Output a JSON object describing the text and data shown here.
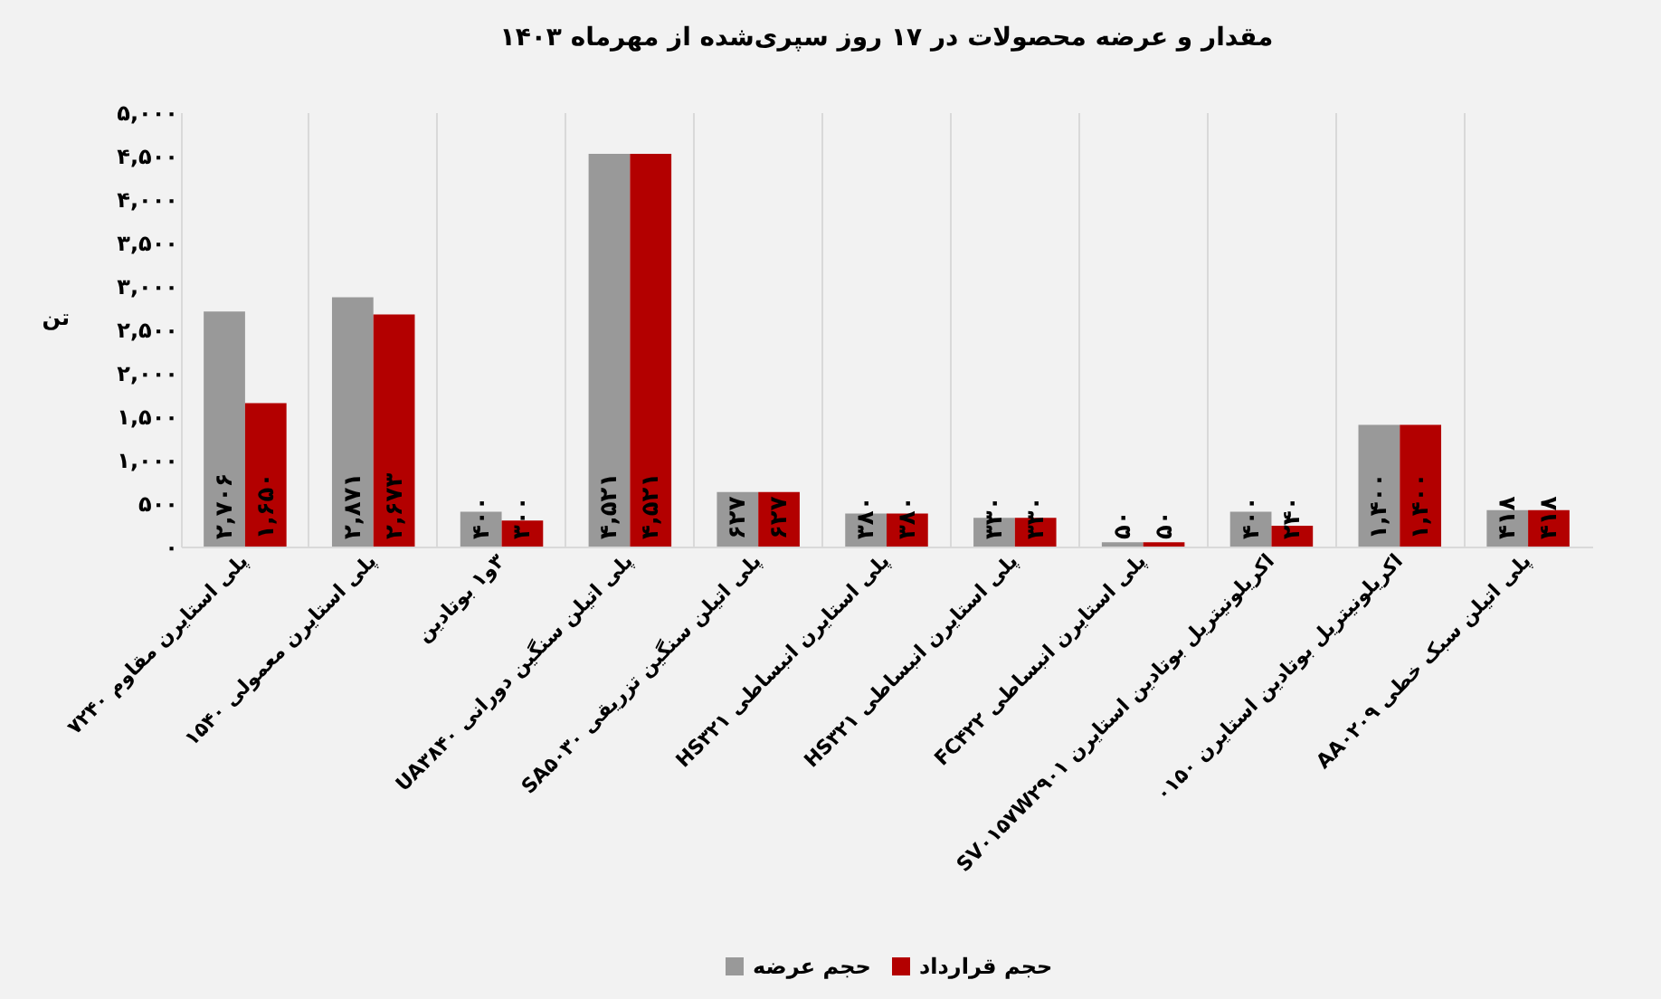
{
  "chart_data": {
    "type": "bar",
    "title": "مقدار و عرضه محصولات در ۱۷ روز سپری‌شده از مهرماه ۱۴۰۳",
    "ylabel": "تن",
    "categories": [
      "پلی استایرن مقاوم ۷۲۴۰",
      "پلی استایرن معمولی ۱۵۴۰",
      "۳و۱ بوتادین",
      "پلی اتیلن سنگین دورانی UA۳۸۴۰",
      "پلی اتیلن سنگین تزریقی SA۵۰۳۰",
      "پلی استایرن انبساطی HS۳۲۱",
      "پلی استایرن انبساطی HS۳۲۱",
      "پلی استایرن انبساطی FC۴۲۲",
      "اکریلونیتریل بوتادین استایرن SV۰۱۵۷W۲۹۰۱",
      "اکریلونیتریل بوتادین استایرن ۰۱۵۰",
      "پلی اتیلن سبک خطی AA۰۲۰۹"
    ],
    "series": [
      {
        "name": "حجم عرضه",
        "color": "#999999",
        "values": [
          2706,
          2871,
          400,
          4521,
          627,
          380,
          330,
          50,
          400,
          1400,
          418
        ],
        "value_labels": [
          "۲,۷۰۶",
          "۲,۸۷۱",
          "۴۰۰",
          "۴,۵۲۱",
          "۶۲۷",
          "۳۸۰",
          "۳۳۰",
          "۵۰",
          "۴۰۰",
          "۱,۴۰۰",
          "۴۱۸"
        ]
      },
      {
        "name": "حجم قرارداد",
        "color": "#b30000",
        "values": [
          1650,
          2673,
          300,
          4521,
          627,
          380,
          330,
          50,
          240,
          1400,
          418
        ],
        "value_labels": [
          "۱,۶۵۰",
          "۲,۶۷۳",
          "۳۰۰",
          "۴,۵۲۱",
          "۶۲۷",
          "۳۸۰",
          "۳۳۰",
          "۵۰",
          "۲۴۰",
          "۱,۴۰۰",
          "۴۱۸"
        ]
      }
    ],
    "ylim": [
      0,
      5000
    ],
    "yticks": [
      {
        "value": 0,
        "label": "۰"
      },
      {
        "value": 500,
        "label": "۵۰۰"
      },
      {
        "value": 1000,
        "label": "۱,۰۰۰"
      },
      {
        "value": 1500,
        "label": "۱,۵۰۰"
      },
      {
        "value": 2000,
        "label": "۲,۰۰۰"
      },
      {
        "value": 2500,
        "label": "۲,۵۰۰"
      },
      {
        "value": 3000,
        "label": "۳,۰۰۰"
      },
      {
        "value": 3500,
        "label": "۳,۵۰۰"
      },
      {
        "value": 4000,
        "label": "۴,۰۰۰"
      },
      {
        "value": 4500,
        "label": "۴,۵۰۰"
      },
      {
        "value": 5000,
        "label": "۵,۰۰۰"
      }
    ],
    "grid": "x",
    "legend": "bottom"
  }
}
